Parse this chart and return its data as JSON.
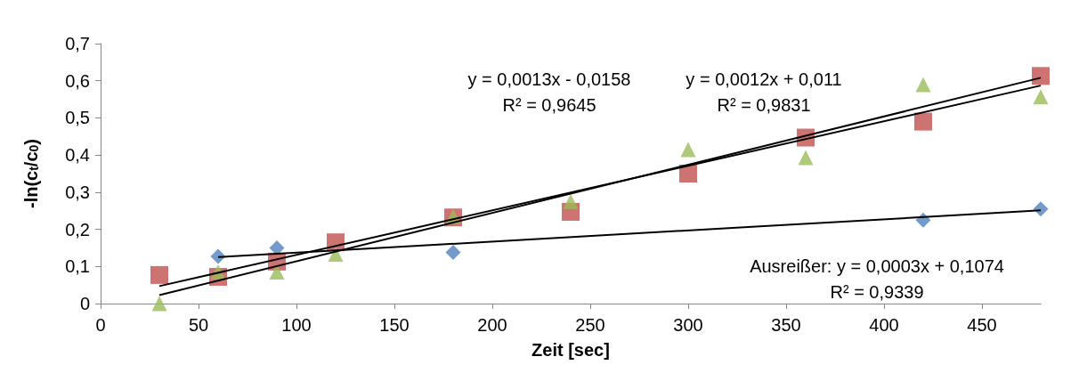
{
  "chart_data": {
    "type": "scatter",
    "xlabel": "Zeit [sec]",
    "ylabel": "-ln(c$_{t}$/c$_{0}$)",
    "xlim": [
      0,
      480
    ],
    "xticks": [
      0,
      50,
      100,
      150,
      200,
      250,
      300,
      350,
      400,
      450
    ],
    "ylim": [
      0,
      0.7
    ],
    "yticks": [
      0,
      {
        "value": 0.1,
        "label": "0,1"
      },
      {
        "value": 0.2,
        "label": "0,2"
      },
      {
        "value": 0.3,
        "label": "0,3"
      },
      {
        "value": 0.4,
        "label": "0,4"
      },
      {
        "value": 0.5,
        "label": "0,5"
      },
      {
        "value": 0.6,
        "label": "0,6"
      },
      {
        "value": 0.7,
        "label": "0,7"
      }
    ],
    "grid": false,
    "series": [
      {
        "marker": "diamond",
        "color": "#4f81bd",
        "x": [
          60,
          90,
          180,
          420,
          480
        ],
        "values": [
          0.127,
          0.15,
          0.138,
          0.225,
          0.255
        ]
      },
      {
        "marker": "square",
        "color": "#c0504d",
        "x": [
          30,
          60,
          90,
          120,
          180,
          240,
          300,
          360,
          420,
          480
        ],
        "values": [
          0.077,
          0.072,
          0.113,
          0.165,
          0.232,
          0.247,
          0.35,
          0.447,
          0.49,
          0.613
        ]
      },
      {
        "marker": "triangle",
        "color": "#9bbb59",
        "x": [
          30,
          60,
          90,
          120,
          180,
          240,
          300,
          360,
          420,
          480
        ],
        "values": [
          0.0,
          0.085,
          0.085,
          0.133,
          0.235,
          0.275,
          0.415,
          0.393,
          0.59,
          0.557
        ]
      },
      {
        "type": "line",
        "marker": "none",
        "color": "#000000",
        "x": [
          60,
          480
        ],
        "values": [
          0.125,
          0.251
        ]
      },
      {
        "type": "line",
        "marker": "none",
        "color": "#000000",
        "x": [
          30,
          480
        ],
        "values": [
          0.047,
          0.587
        ]
      },
      {
        "type": "line",
        "marker": "none",
        "color": "#000000",
        "x": [
          30,
          480
        ],
        "values": [
          0.023,
          0.608
        ]
      }
    ],
    "annotations": [
      "y = 0,0013x - 0,0158\nR² = 0,9645",
      "y = 0,0012x + 0,011\nR² = 0,9831",
      "Ausreißer: y = 0,0003x + 0,1074\nR² = 0,9339"
    ]
  }
}
